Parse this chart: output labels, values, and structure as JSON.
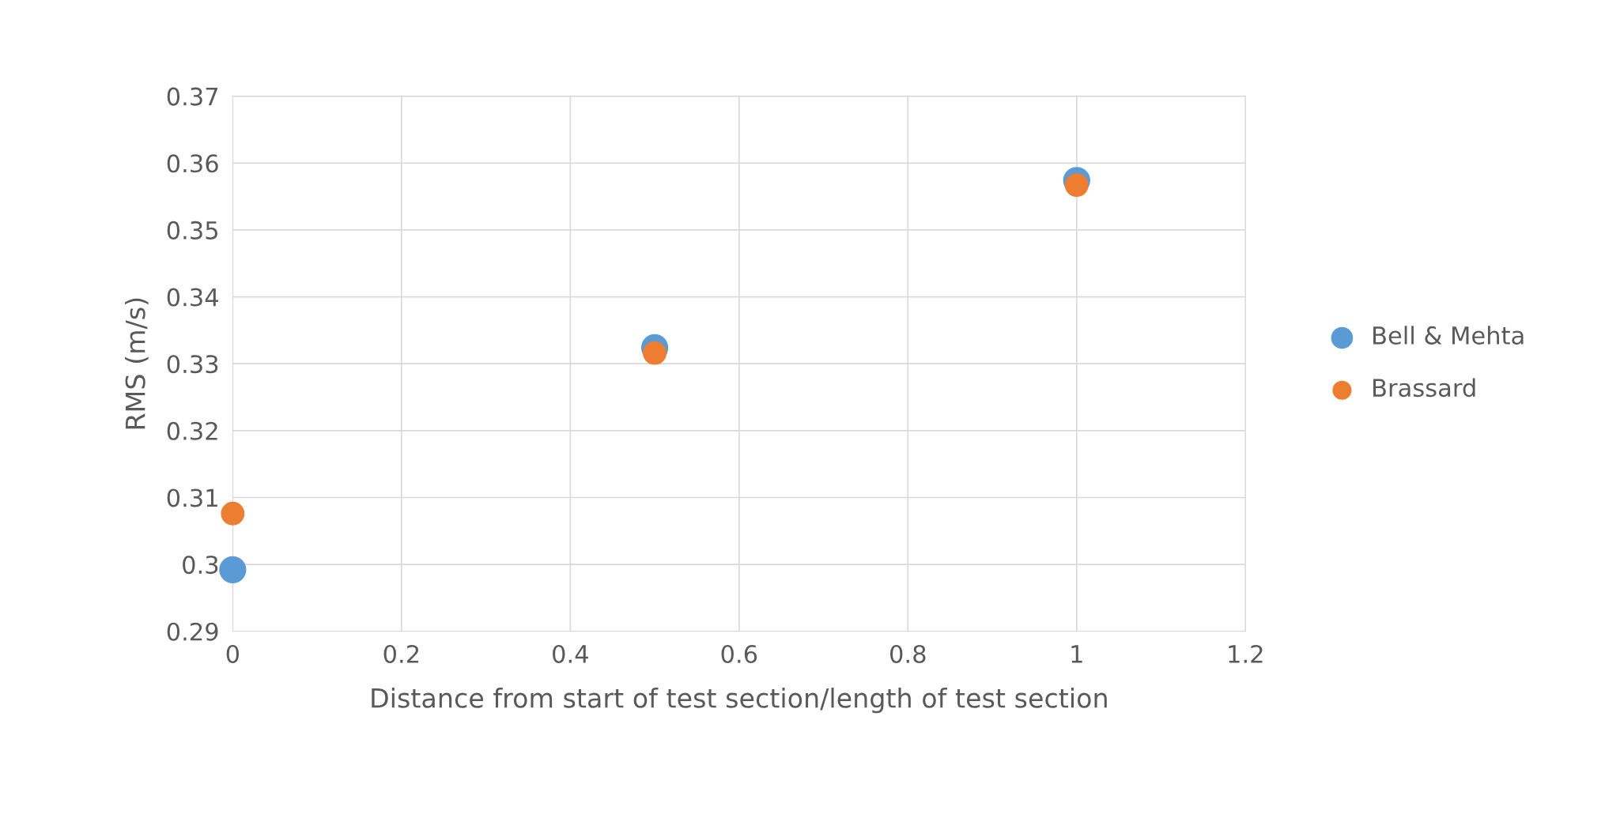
{
  "chart_data": {
    "type": "scatter",
    "xlabel": "Distance from start of test section/length of test section",
    "ylabel": "RMS (m/s)",
    "series": [
      {
        "name": "Bell & Mehta",
        "color": "#5b9bd5",
        "x": [
          0,
          0.5,
          1
        ],
        "values": [
          0.2992,
          0.3324,
          0.3574
        ]
      },
      {
        "name": "Brassard",
        "color": "#ed7d31",
        "x": [
          0,
          0.5,
          1
        ],
        "values": [
          0.3076,
          0.3316,
          0.3567
        ]
      }
    ],
    "xlim": [
      0,
      1.2
    ],
    "xticks": [
      0,
      0.2,
      0.4,
      0.6,
      0.8,
      1,
      1.2
    ],
    "ylim": [
      0.29,
      0.37
    ],
    "yticks": [
      0.29,
      0.3,
      0.31,
      0.32,
      0.33,
      0.34,
      0.35,
      0.36,
      0.37
    ],
    "grid": true,
    "legend": "right",
    "marker": "circle"
  }
}
